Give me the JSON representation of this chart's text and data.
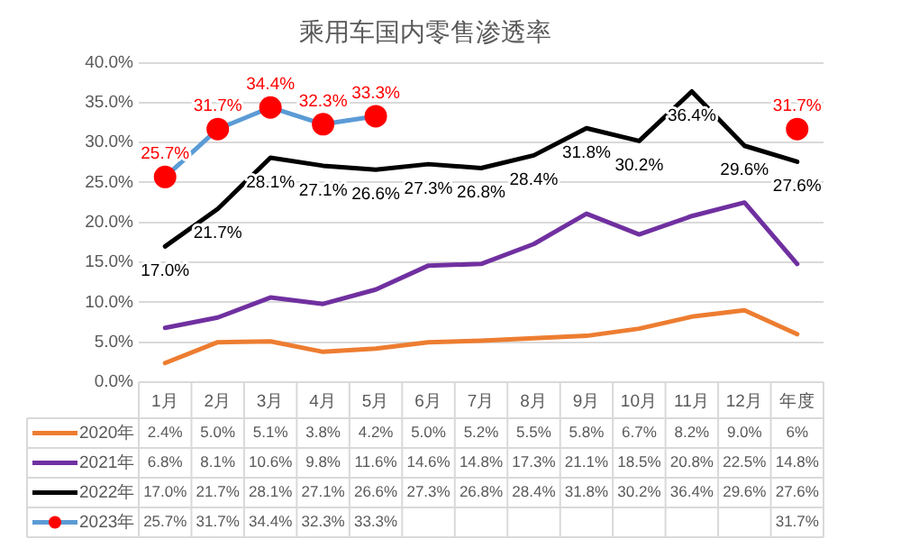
{
  "chart_data": {
    "type": "line",
    "title": "乘用车国内零售渗透率",
    "categories": [
      "1月",
      "2月",
      "3月",
      "4月",
      "5月",
      "6月",
      "7月",
      "8月",
      "9月",
      "10月",
      "11月",
      "12月",
      "年度"
    ],
    "ylim": [
      0,
      40
    ],
    "yticks": [
      {
        "value": 0,
        "label": "0.0%"
      },
      {
        "value": 5,
        "label": "5.0%"
      },
      {
        "value": 10,
        "label": "10.0%"
      },
      {
        "value": 15,
        "label": "15.0%"
      },
      {
        "value": 20,
        "label": "20.0%"
      },
      {
        "value": 25,
        "label": "25.0%"
      },
      {
        "value": 30,
        "label": "30.0%"
      },
      {
        "value": 35,
        "label": "35.0%"
      },
      {
        "value": 40,
        "label": "40.0%"
      }
    ],
    "grid": "y",
    "legend": "bottom",
    "marker": "none",
    "series": [
      {
        "name": "2020年",
        "color": "#ed7d31",
        "values": [
          2.4,
          5.0,
          5.1,
          3.8,
          4.2,
          5.0,
          5.2,
          5.5,
          5.8,
          6.7,
          8.2,
          9.0,
          6
        ],
        "value_labels": [
          "2.4%",
          "5.0%",
          "5.1%",
          "3.8%",
          "4.2%",
          "5.0%",
          "5.2%",
          "5.5%",
          "5.8%",
          "6.7%",
          "8.2%",
          "9.0%",
          "6%"
        ]
      },
      {
        "name": "2021年",
        "color": "#7030a0",
        "values": [
          6.8,
          8.1,
          10.6,
          9.8,
          11.6,
          14.6,
          14.8,
          17.3,
          21.1,
          18.5,
          20.8,
          22.5,
          14.8
        ],
        "value_labels": [
          "6.8%",
          "8.1%",
          "10.6%",
          "9.8%",
          "11.6%",
          "14.6%",
          "14.8%",
          "17.3%",
          "21.1%",
          "18.5%",
          "20.8%",
          "22.5%",
          "14.8%"
        ]
      },
      {
        "name": "2022年",
        "color": "#000000",
        "data_labels": "below",
        "values": [
          17.0,
          21.7,
          28.1,
          27.1,
          26.6,
          27.3,
          26.8,
          28.4,
          31.8,
          30.2,
          36.4,
          29.6,
          27.6
        ],
        "value_labels": [
          "17.0%",
          "21.7%",
          "28.1%",
          "27.1%",
          "26.6%",
          "27.3%",
          "26.8%",
          "28.4%",
          "31.8%",
          "30.2%",
          "36.4%",
          "29.6%",
          "27.6%"
        ]
      },
      {
        "name": "2023年",
        "color": "#5b9bd5",
        "marker": "circle",
        "colors": [
          "#ff0000",
          "#ff0000",
          "#ff0000",
          "#ff0000",
          "#ff0000",
          null,
          null,
          null,
          null,
          null,
          null,
          null,
          "#ff0000"
        ],
        "data_labels": "above",
        "values": [
          25.7,
          31.7,
          34.4,
          32.3,
          33.3,
          null,
          null,
          null,
          null,
          null,
          null,
          null,
          31.7
        ],
        "value_labels": [
          "25.7%",
          "31.7%",
          "34.4%",
          "32.3%",
          "33.3%",
          null,
          null,
          null,
          null,
          null,
          null,
          null,
          "31.7%"
        ]
      }
    ]
  }
}
